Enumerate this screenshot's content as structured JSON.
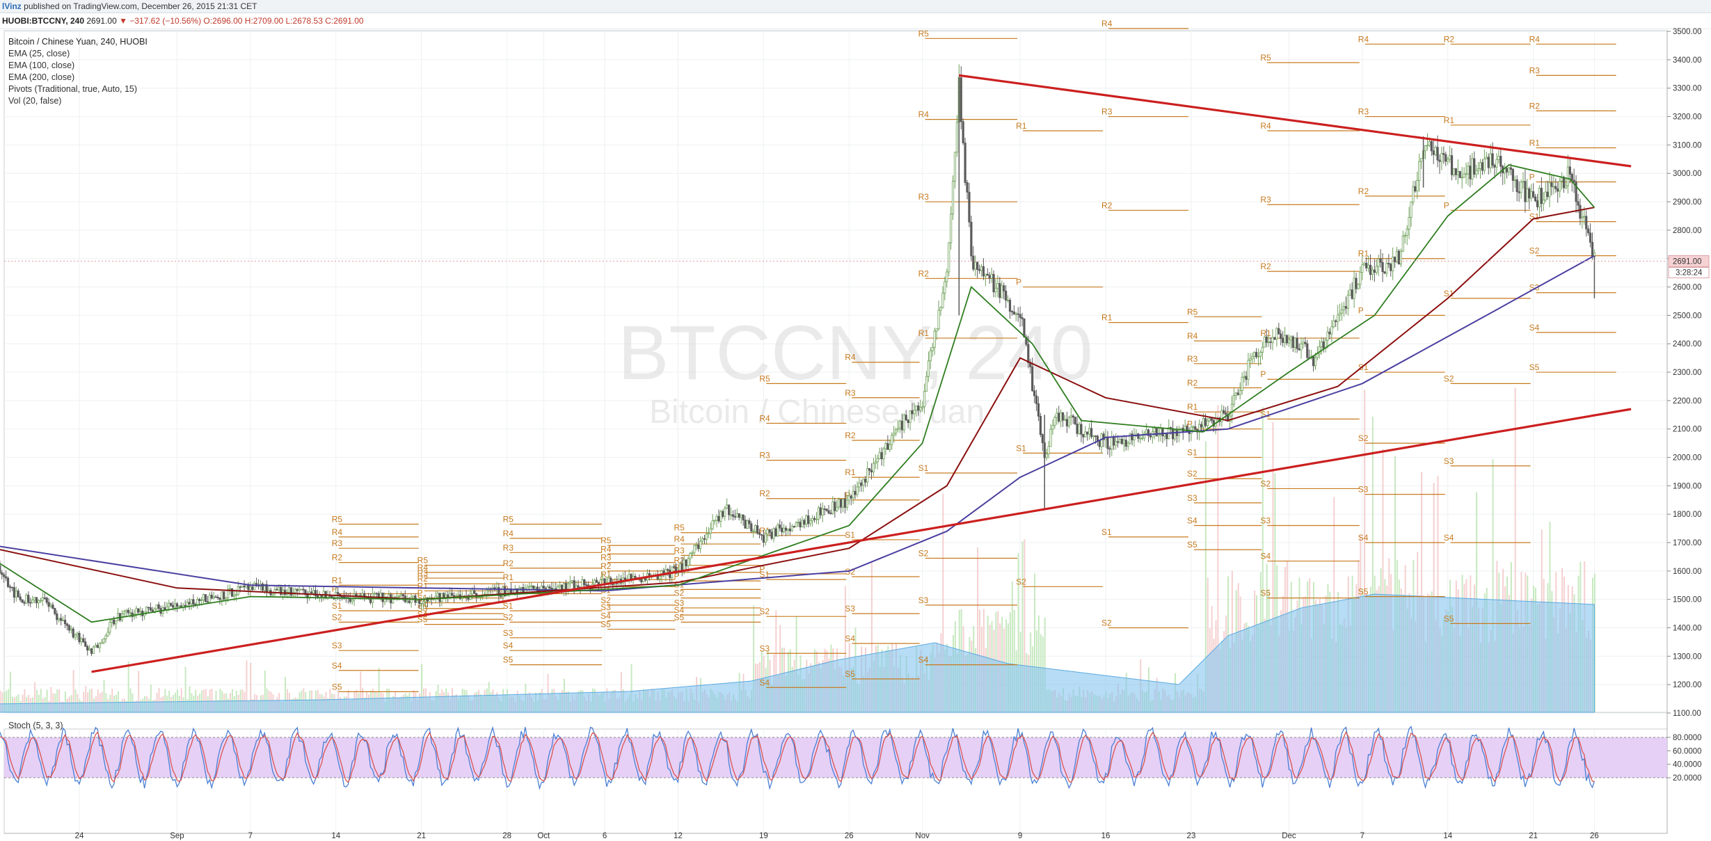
{
  "header": {
    "author": "lVinz",
    "published": "published on TradingView.com, December 26, 2015 21:31 CET"
  },
  "symbol_bar": {
    "symbol": "HUOBI:BTCCNY, 240",
    "last": "2691.00",
    "change": "▼ −317.62 (−10.56%)",
    "ohlc": "O:2696.00 H:2709.00 L:2678.53 C:2691.00"
  },
  "legend": {
    "title": "Bitcoin / Chinese Yuan, 240, HUOBI",
    "ema25": "EMA (25, close)",
    "ema100": "EMA (100, close)",
    "ema200": "EMA (200, close)",
    "pivots": "Pivots (Traditional, true, Auto, 15)",
    "vol": "Vol (20, false)"
  },
  "watermark": {
    "symbol": "BTCCNY, 240",
    "name": "Bitcoin / Chinese Yuan"
  },
  "price_badge": {
    "price": "2691.00",
    "countdown": "3:28:24"
  },
  "stoch": {
    "label": "Stoch (5, 3, 3)",
    "ticks": [
      "80.0000",
      "60.0000",
      "40.0000",
      "20.0000"
    ]
  },
  "colors": {
    "up": "#6fa05a",
    "down": "#5a5a5a",
    "ema25": "#2e7d1f",
    "ema100": "#8b0f0f",
    "ema200": "#4a3fa0",
    "trendline": "#cc1f1f",
    "pivot": "#c77a1e",
    "volume_fill": "#87c5ef",
    "stoch_band": "#e2c8f5",
    "stoch_k": "#4a7fd4",
    "stoch_d": "#d9534f"
  },
  "chart_data": {
    "type": "candlestick",
    "y_axis": {
      "min": 1100,
      "max": 3500,
      "ticks": [
        1100,
        1200,
        1300,
        1400,
        1500,
        1600,
        1700,
        1800,
        1900,
        2000,
        2100,
        2200,
        2300,
        2400,
        2500,
        2600,
        2700,
        2800,
        2900,
        3000,
        3100,
        3200,
        3300,
        3400,
        3500
      ]
    },
    "x_labels": [
      "24",
      "Sep",
      "7",
      "14",
      "21",
      "28",
      "Oct",
      "6",
      "12",
      "19",
      "26",
      "Nov",
      "9",
      "16",
      "23",
      "Dec",
      "7",
      "14",
      "21",
      "26"
    ],
    "price_path": [
      {
        "date": "2015-08-17",
        "price": 1650
      },
      {
        "date": "2015-08-19",
        "price": 1500
      },
      {
        "date": "2015-08-21",
        "price": 1500
      },
      {
        "date": "2015-08-25",
        "price": 1310
      },
      {
        "date": "2015-08-27",
        "price": 1440
      },
      {
        "date": "2015-08-31",
        "price": 1470
      },
      {
        "date": "2015-09-07",
        "price": 1540
      },
      {
        "date": "2015-09-14",
        "price": 1510
      },
      {
        "date": "2015-09-21",
        "price": 1500
      },
      {
        "date": "2015-09-28",
        "price": 1530
      },
      {
        "date": "2015-10-06",
        "price": 1560
      },
      {
        "date": "2015-10-12",
        "price": 1600
      },
      {
        "date": "2015-10-16",
        "price": 1820
      },
      {
        "date": "2015-10-19",
        "price": 1720
      },
      {
        "date": "2015-10-26",
        "price": 1850
      },
      {
        "date": "2015-10-30",
        "price": 2100
      },
      {
        "date": "2015-11-01",
        "price": 2200
      },
      {
        "date": "2015-11-03",
        "price": 2650
      },
      {
        "date": "2015-11-04",
        "price": 3300
      },
      {
        "date": "2015-11-05",
        "price": 2700
      },
      {
        "date": "2015-11-09",
        "price": 2500
      },
      {
        "date": "2015-11-11",
        "price": 2000
      },
      {
        "date": "2015-11-12",
        "price": 2150
      },
      {
        "date": "2015-11-16",
        "price": 2050
      },
      {
        "date": "2015-11-23",
        "price": 2100
      },
      {
        "date": "2015-11-26",
        "price": 2150
      },
      {
        "date": "2015-11-28",
        "price": 2350
      },
      {
        "date": "2015-11-30",
        "price": 2450
      },
      {
        "date": "2015-12-03",
        "price": 2350
      },
      {
        "date": "2015-12-07",
        "price": 2650
      },
      {
        "date": "2015-12-10",
        "price": 2700
      },
      {
        "date": "2015-12-12",
        "price": 3100
      },
      {
        "date": "2015-12-15",
        "price": 3000
      },
      {
        "date": "2015-12-18",
        "price": 3050
      },
      {
        "date": "2015-12-21",
        "price": 2900
      },
      {
        "date": "2015-12-24",
        "price": 3000
      },
      {
        "date": "2015-12-26",
        "price": 2691
      }
    ],
    "ema25": [
      {
        "date": "2015-08-17",
        "price": 1640
      },
      {
        "date": "2015-08-25",
        "price": 1420
      },
      {
        "date": "2015-09-07",
        "price": 1510
      },
      {
        "date": "2015-09-21",
        "price": 1500
      },
      {
        "date": "2015-10-12",
        "price": 1550
      },
      {
        "date": "2015-10-26",
        "price": 1760
      },
      {
        "date": "2015-11-01",
        "price": 2050
      },
      {
        "date": "2015-11-05",
        "price": 2600
      },
      {
        "date": "2015-11-10",
        "price": 2400
      },
      {
        "date": "2015-11-14",
        "price": 2130
      },
      {
        "date": "2015-11-24",
        "price": 2090
      },
      {
        "date": "2015-12-01",
        "price": 2300
      },
      {
        "date": "2015-12-08",
        "price": 2500
      },
      {
        "date": "2015-12-14",
        "price": 2850
      },
      {
        "date": "2015-12-19",
        "price": 3030
      },
      {
        "date": "2015-12-24",
        "price": 2980
      },
      {
        "date": "2015-12-26",
        "price": 2880
      }
    ],
    "ema100": [
      {
        "date": "2015-08-17",
        "price": 1680
      },
      {
        "date": "2015-09-01",
        "price": 1540
      },
      {
        "date": "2015-09-21",
        "price": 1500
      },
      {
        "date": "2015-10-12",
        "price": 1560
      },
      {
        "date": "2015-10-26",
        "price": 1680
      },
      {
        "date": "2015-11-03",
        "price": 1900
      },
      {
        "date": "2015-11-09",
        "price": 2350
      },
      {
        "date": "2015-11-16",
        "price": 2210
      },
      {
        "date": "2015-11-26",
        "price": 2130
      },
      {
        "date": "2015-12-05",
        "price": 2250
      },
      {
        "date": "2015-12-14",
        "price": 2560
      },
      {
        "date": "2015-12-21",
        "price": 2840
      },
      {
        "date": "2015-12-26",
        "price": 2880
      }
    ],
    "ema200": [
      {
        "date": "2015-08-17",
        "price": 1690
      },
      {
        "date": "2015-09-07",
        "price": 1550
      },
      {
        "date": "2015-10-06",
        "price": 1530
      },
      {
        "date": "2015-10-26",
        "price": 1600
      },
      {
        "date": "2015-11-03",
        "price": 1740
      },
      {
        "date": "2015-11-09",
        "price": 1930
      },
      {
        "date": "2015-11-16",
        "price": 2070
      },
      {
        "date": "2015-11-26",
        "price": 2100
      },
      {
        "date": "2015-12-07",
        "price": 2260
      },
      {
        "date": "2015-12-18",
        "price": 2520
      },
      {
        "date": "2015-12-26",
        "price": 2710
      }
    ],
    "trendlines": [
      {
        "name": "resistance",
        "from": {
          "date": "2015-11-04",
          "price": 3345
        },
        "to": {
          "date": "2015-12-29",
          "price": 3025
        }
      },
      {
        "name": "support",
        "from": {
          "date": "2015-08-25",
          "price": 1245
        },
        "to": {
          "date": "2015-12-29",
          "price": 2170
        }
      }
    ],
    "pivot_periods": [
      {
        "start": "2015-09-14",
        "end": "2015-09-21",
        "levels": {
          "R5": 1765,
          "R4": 1720,
          "R3": 1680,
          "R2": 1630,
          "R1": 1550,
          "P": 1520,
          "S1": 1460,
          "S2": 1420,
          "S3": 1320,
          "S4": 1250,
          "S5": 1175
        }
      },
      {
        "start": "2015-09-21",
        "end": "2015-09-28",
        "levels": {
          "R5": 1620,
          "R4": 1595,
          "R3": 1575,
          "R2": 1555,
          "R1": 1530,
          "P": 1505,
          "S1": 1488,
          "S2": 1468,
          "S3": 1450,
          "S4": 1430,
          "S5": 1412
        }
      },
      {
        "start": "2015-09-28",
        "end": "2015-10-06",
        "levels": {
          "R5": 1765,
          "R4": 1715,
          "R3": 1665,
          "R2": 1610,
          "R1": 1560,
          "P": 1520,
          "S1": 1460,
          "S2": 1420,
          "S3": 1365,
          "S4": 1320,
          "S5": 1270
        }
      },
      {
        "start": "2015-10-06",
        "end": "2015-10-12",
        "levels": {
          "R5": 1690,
          "R4": 1660,
          "R3": 1630,
          "R2": 1600,
          "R1": 1570,
          "P": 1545,
          "S1": 1515,
          "S2": 1480,
          "S3": 1455,
          "S4": 1425,
          "S5": 1395
        }
      },
      {
        "start": "2015-10-12",
        "end": "2015-10-19",
        "levels": {
          "R5": 1735,
          "R4": 1695,
          "R3": 1655,
          "R2": 1620,
          "R1": 1595,
          "P": 1565,
          "S1": 1535,
          "S2": 1505,
          "S3": 1470,
          "S4": 1445,
          "S5": 1420
        }
      },
      {
        "start": "2015-10-19",
        "end": "2015-10-26",
        "levels": {
          "R5": 2260,
          "R4": 2120,
          "R3": 1990,
          "R2": 1855,
          "R1": 1725,
          "P": 1590,
          "S1": 1570,
          "S2": 1440,
          "S3": 1310,
          "S4": 1190
        }
      },
      {
        "start": "2015-10-26",
        "end": "2015-11-01",
        "levels": {
          "R4": 2335,
          "R3": 2210,
          "R2": 2060,
          "R1": 1930,
          "P": 1850,
          "S1": 1710,
          "S2": 1580,
          "S3": 1450,
          "S4": 1345,
          "S5": 1220
        }
      },
      {
        "start": "2015-11-01",
        "end": "2015-11-09",
        "levels": {
          "R5": 3475,
          "R4": 3190,
          "R3": 2900,
          "R2": 2630,
          "R1": 2420,
          "S1": 1945,
          "S2": 1645,
          "S3": 1480,
          "S4": 1270
        }
      },
      {
        "start": "2015-11-09",
        "end": "2015-11-16",
        "levels": {
          "R1": 3150,
          "P": 2600,
          "S1": 2015,
          "S2": 1545
        }
      },
      {
        "start": "2015-11-16",
        "end": "2015-11-23",
        "levels": {
          "R4": 3510,
          "R3": 3200,
          "R2": 2870,
          "R1": 2475,
          "S1": 1720,
          "S2": 1400
        }
      },
      {
        "start": "2015-11-23",
        "end": "2015-11-29",
        "levels": {
          "R5": 2495,
          "R4": 2410,
          "R3": 2330,
          "R2": 2245,
          "R1": 2160,
          "P": 2100,
          "S1": 2000,
          "S2": 1925,
          "S3": 1840,
          "S4": 1760,
          "S5": 1675
        }
      },
      {
        "start": "2015-11-29",
        "end": "2015-12-07",
        "levels": {
          "R5": 3390,
          "R4": 3150,
          "R3": 2890,
          "R2": 2655,
          "R1": 2420,
          "P": 2275,
          "S1": 2135,
          "S2": 1890,
          "S3": 1760,
          "S4": 1635,
          "S5": 1505
        }
      },
      {
        "start": "2015-12-07",
        "end": "2015-12-14",
        "levels": {
          "R4": 3455,
          "R3": 3200,
          "R2": 2920,
          "R1": 2700,
          "P": 2500,
          "S1": 2300,
          "S2": 2050,
          "S3": 1870,
          "S4": 1700,
          "S5": 1510
        }
      },
      {
        "start": "2015-12-14",
        "end": "2015-12-21",
        "levels": {
          "R2": 3455,
          "R1": 3170,
          "P": 2870,
          "S1": 2560,
          "S2": 2260,
          "S3": 1970,
          "S4": 1700,
          "S5": 1415
        }
      },
      {
        "start": "2015-12-21",
        "end": "2015-12-28",
        "levels": {
          "R4": 3455,
          "R3": 3345,
          "R2": 3220,
          "R1": 3090,
          "P": 2970,
          "S1": 2830,
          "S2": 2710,
          "S3": 2580,
          "S4": 2440,
          "S5": 2300
        }
      }
    ],
    "last_price": 2691.0
  }
}
